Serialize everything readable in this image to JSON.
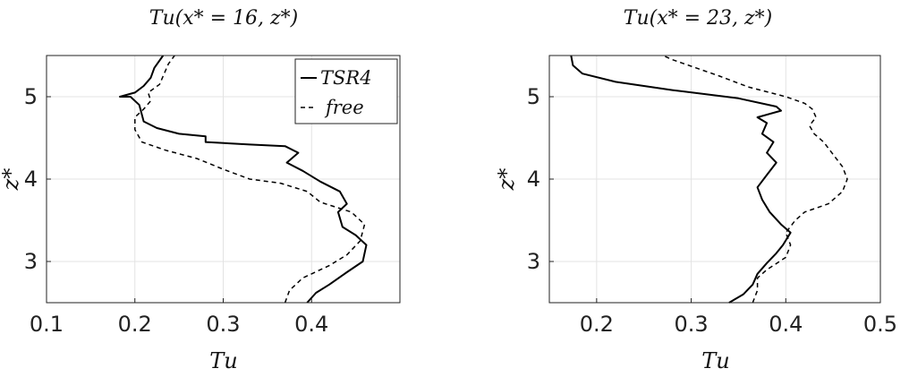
{
  "chart_data": [
    {
      "type": "line",
      "title": "Tu(x* = 16, z*)",
      "xlabel": "Tu",
      "ylabel": "z*",
      "xlim": [
        0.1,
        0.5
      ],
      "ylim": [
        2.5,
        5.5
      ],
      "xticks": [
        "0.1",
        "0.2",
        "0.3",
        "0.4"
      ],
      "yticks": [
        "3",
        "4",
        "5"
      ],
      "grid": true,
      "legend": "top-right",
      "series": [
        {
          "name": "TSR4",
          "style": "solid",
          "color": "#000000",
          "points": [
            [
              0.395,
              2.5
            ],
            [
              0.405,
              2.62
            ],
            [
              0.42,
              2.72
            ],
            [
              0.44,
              2.87
            ],
            [
              0.458,
              3.0
            ],
            [
              0.462,
              3.2
            ],
            [
              0.45,
              3.32
            ],
            [
              0.435,
              3.42
            ],
            [
              0.43,
              3.6
            ],
            [
              0.44,
              3.7
            ],
            [
              0.432,
              3.85
            ],
            [
              0.41,
              3.97
            ],
            [
              0.39,
              4.1
            ],
            [
              0.372,
              4.2
            ],
            [
              0.385,
              4.32
            ],
            [
              0.37,
              4.4
            ],
            [
              0.33,
              4.42
            ],
            [
              0.28,
              4.45
            ],
            [
              0.28,
              4.52
            ],
            [
              0.25,
              4.55
            ],
            [
              0.225,
              4.62
            ],
            [
              0.21,
              4.7
            ],
            [
              0.205,
              4.9
            ],
            [
              0.195,
              5.0
            ],
            [
              0.183,
              5.0
            ],
            [
              0.2,
              5.05
            ],
            [
              0.21,
              5.13
            ],
            [
              0.218,
              5.23
            ],
            [
              0.222,
              5.35
            ],
            [
              0.232,
              5.5
            ]
          ]
        },
        {
          "name": "free",
          "style": "dashed",
          "color": "#000000",
          "points": [
            [
              0.37,
              2.5
            ],
            [
              0.375,
              2.65
            ],
            [
              0.39,
              2.8
            ],
            [
              0.42,
              2.95
            ],
            [
              0.44,
              3.08
            ],
            [
              0.455,
              3.25
            ],
            [
              0.46,
              3.45
            ],
            [
              0.445,
              3.6
            ],
            [
              0.41,
              3.72
            ],
            [
              0.395,
              3.85
            ],
            [
              0.365,
              3.95
            ],
            [
              0.33,
              4.0
            ],
            [
              0.3,
              4.12
            ],
            [
              0.27,
              4.25
            ],
            [
              0.235,
              4.35
            ],
            [
              0.208,
              4.45
            ],
            [
              0.2,
              4.6
            ],
            [
              0.2,
              4.75
            ],
            [
              0.21,
              4.85
            ],
            [
              0.218,
              4.95
            ],
            [
              0.215,
              5.05
            ],
            [
              0.228,
              5.15
            ],
            [
              0.232,
              5.25
            ],
            [
              0.238,
              5.4
            ],
            [
              0.245,
              5.5
            ]
          ]
        }
      ]
    },
    {
      "type": "line",
      "title": "Tu(x* = 23, z*)",
      "xlabel": "Tu",
      "ylabel": "z*",
      "xlim": [
        0.15,
        0.5
      ],
      "ylim": [
        2.5,
        5.5
      ],
      "xticks": [
        "0.2",
        "0.3",
        "0.4",
        "0.5"
      ],
      "yticks": [
        "3",
        "4",
        "5"
      ],
      "grid": true,
      "series": [
        {
          "name": "TSR4",
          "style": "solid",
          "color": "#000000",
          "points": [
            [
              0.34,
              2.5
            ],
            [
              0.355,
              2.6
            ],
            [
              0.365,
              2.72
            ],
            [
              0.37,
              2.85
            ],
            [
              0.38,
              2.98
            ],
            [
              0.39,
              3.1
            ],
            [
              0.397,
              3.2
            ],
            [
              0.405,
              3.35
            ],
            [
              0.395,
              3.45
            ],
            [
              0.383,
              3.6
            ],
            [
              0.375,
              3.75
            ],
            [
              0.37,
              3.9
            ],
            [
              0.38,
              4.05
            ],
            [
              0.39,
              4.2
            ],
            [
              0.38,
              4.32
            ],
            [
              0.387,
              4.45
            ],
            [
              0.375,
              4.55
            ],
            [
              0.38,
              4.68
            ],
            [
              0.37,
              4.75
            ],
            [
              0.395,
              4.83
            ],
            [
              0.39,
              4.88
            ],
            [
              0.35,
              4.98
            ],
            [
              0.28,
              5.08
            ],
            [
              0.22,
              5.18
            ],
            [
              0.185,
              5.28
            ],
            [
              0.175,
              5.38
            ],
            [
              0.173,
              5.5
            ]
          ]
        },
        {
          "name": "free",
          "style": "dashed",
          "color": "#000000",
          "points": [
            [
              0.365,
              2.5
            ],
            [
              0.37,
              2.65
            ],
            [
              0.37,
              2.8
            ],
            [
              0.38,
              2.9
            ],
            [
              0.4,
              3.05
            ],
            [
              0.405,
              3.2
            ],
            [
              0.4,
              3.35
            ],
            [
              0.41,
              3.5
            ],
            [
              0.42,
              3.6
            ],
            [
              0.445,
              3.7
            ],
            [
              0.46,
              3.85
            ],
            [
              0.465,
              4.0
            ],
            [
              0.46,
              4.15
            ],
            [
              0.45,
              4.3
            ],
            [
              0.44,
              4.45
            ],
            [
              0.43,
              4.55
            ],
            [
              0.425,
              4.65
            ],
            [
              0.432,
              4.75
            ],
            [
              0.428,
              4.85
            ],
            [
              0.42,
              4.92
            ],
            [
              0.4,
              5.0
            ],
            [
              0.36,
              5.12
            ],
            [
              0.33,
              5.25
            ],
            [
              0.305,
              5.35
            ],
            [
              0.28,
              5.45
            ],
            [
              0.27,
              5.5
            ]
          ]
        }
      ]
    }
  ]
}
